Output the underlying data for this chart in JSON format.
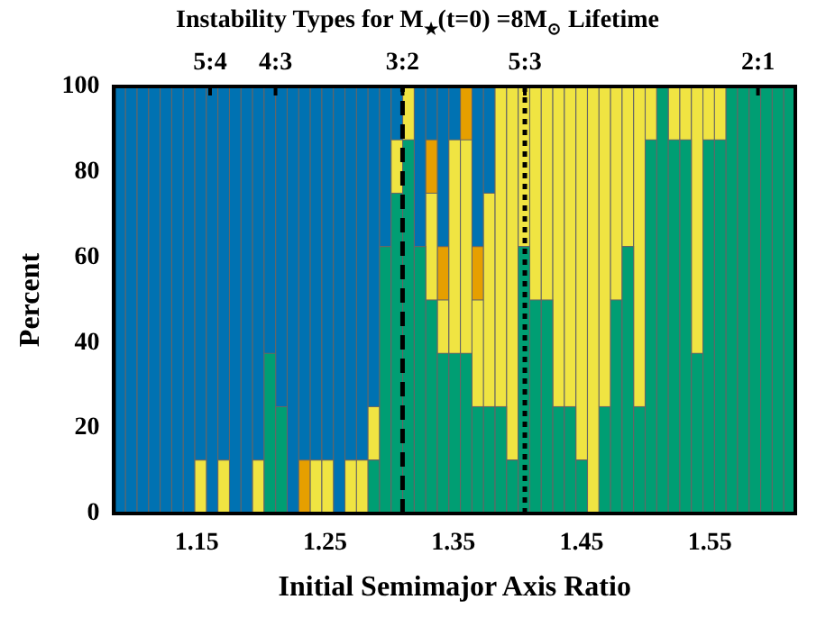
{
  "chart_data": {
    "type": "bar",
    "title": "Instability Types for M$_{★}$(t=0) =8M$_{⊙}$ Lifetime",
    "xlabel": "Initial Semimajor Axis Ratio",
    "ylabel": "Percent",
    "stacked": true,
    "grid": false,
    "legend": false,
    "x": [
      1.09,
      1.099,
      1.108,
      1.117,
      1.126,
      1.135,
      1.144,
      1.153,
      1.162,
      1.171,
      1.18,
      1.189,
      1.198,
      1.207,
      1.216,
      1.225,
      1.234,
      1.243,
      1.252,
      1.261,
      1.27,
      1.279,
      1.288,
      1.297,
      1.306,
      1.315,
      1.324,
      1.333,
      1.342,
      1.351,
      1.36,
      1.369,
      1.378,
      1.387,
      1.396,
      1.405,
      1.414,
      1.423,
      1.432,
      1.441,
      1.45,
      1.459,
      1.468,
      1.477,
      1.486,
      1.495,
      1.504,
      1.513,
      1.522,
      1.531,
      1.54,
      1.549,
      1.558,
      1.567,
      1.576,
      1.585,
      1.594,
      1.603,
      1.612
    ],
    "series": [
      {
        "color": "#009e73",
        "values": [
          0,
          0,
          0,
          0,
          0,
          0,
          0,
          0,
          0,
          0,
          0,
          0,
          0,
          37.5,
          25,
          0,
          0,
          0,
          0,
          0,
          0,
          0,
          12.5,
          62.5,
          75,
          87.5,
          62.5,
          50,
          37.5,
          37.5,
          37.5,
          25,
          25,
          25,
          12.5,
          62.5,
          50,
          50,
          25,
          25,
          12.5,
          0,
          25,
          50,
          62.5,
          25,
          87.5,
          100,
          87.5,
          87.5,
          37.5,
          87.5,
          87.5,
          100,
          100,
          100,
          100,
          100,
          100
        ]
      },
      {
        "color": "#f0e442",
        "values": [
          0,
          0,
          0,
          0,
          0,
          0,
          0,
          12.5,
          0,
          12.5,
          0,
          0,
          12.5,
          0,
          0,
          0,
          0,
          12.5,
          12.5,
          0,
          12.5,
          12.5,
          12.5,
          0,
          12.5,
          12.5,
          0,
          25,
          12.5,
          50,
          50,
          25,
          50,
          75,
          87.5,
          37.5,
          50,
          50,
          75,
          75,
          87.5,
          100,
          75,
          50,
          37.5,
          75,
          12.5,
          0,
          12.5,
          12.5,
          62.5,
          12.5,
          12.5,
          0,
          0,
          0,
          0,
          0,
          0
        ]
      },
      {
        "color": "#e69f00",
        "values": [
          0,
          0,
          0,
          0,
          0,
          0,
          0,
          0,
          0,
          0,
          0,
          0,
          0,
          0,
          0,
          0,
          12.5,
          0,
          0,
          0,
          0,
          0,
          0,
          0,
          0,
          0,
          0,
          12.5,
          12.5,
          0,
          12.5,
          12.5,
          0,
          0,
          0,
          0,
          0,
          0,
          0,
          0,
          0,
          0,
          0,
          0,
          0,
          0,
          0,
          0,
          0,
          0,
          0,
          0,
          0,
          0,
          0,
          0,
          0,
          0,
          0
        ]
      },
      {
        "color": "#0072b2",
        "values": [
          100,
          100,
          100,
          100,
          100,
          100,
          100,
          87.5,
          100,
          87.5,
          100,
          100,
          87.5,
          62.5,
          75,
          100,
          87.5,
          87.5,
          87.5,
          100,
          87.5,
          87.5,
          75,
          37.5,
          12.5,
          0,
          37.5,
          12.5,
          37.5,
          12.5,
          0,
          37.5,
          25,
          0,
          0,
          0,
          0,
          0,
          0,
          0,
          0,
          0,
          0,
          0,
          0,
          0,
          0,
          0,
          0,
          0,
          0,
          0,
          0,
          0,
          0,
          0,
          0,
          0,
          0
        ]
      }
    ],
    "xlim": [
      1.0855,
      1.6165
    ],
    "xticks": [
      1.15,
      1.25,
      1.35,
      1.45,
      1.55
    ],
    "annotations": [
      {
        "text": "5:4",
        "x": 1.1604
      },
      {
        "text": "4:3",
        "x": 1.2114
      },
      {
        "text": "3:2",
        "x": 1.3104
      },
      {
        "text": "5:3",
        "x": 1.4057
      },
      {
        "text": "2:1",
        "x": 1.5874
      }
    ],
    "ylim": [
      0,
      100
    ],
    "yticks": [
      0,
      20,
      40,
      60,
      80,
      100
    ],
    "ref_lines": [
      {
        "axis": "x",
        "value": 1.3104,
        "color": "#000000",
        "line_style": "dashed"
      },
      {
        "axis": "x",
        "value": 1.4057,
        "color": "#000000",
        "line_style": "dotted"
      }
    ]
  }
}
